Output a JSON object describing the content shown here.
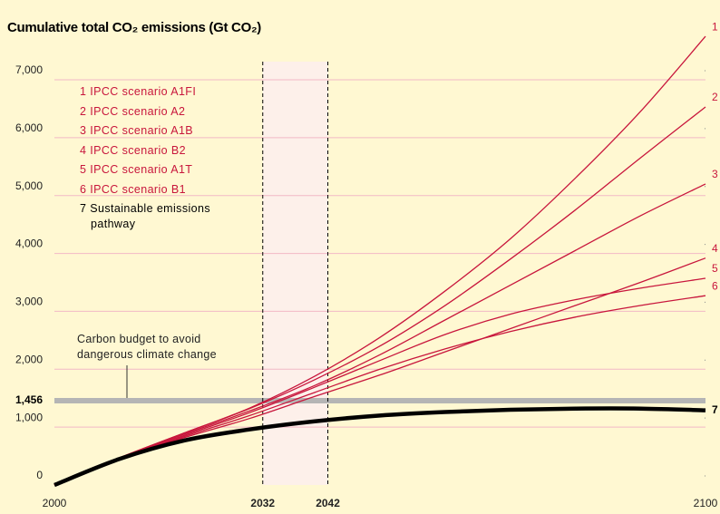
{
  "chart_data": {
    "type": "line",
    "title": "Cumulative total CO₂ emissions (Gt CO₂)",
    "x": [
      2000,
      2010,
      2020,
      2030,
      2040,
      2050,
      2060,
      2070,
      2080,
      2090,
      2100
    ],
    "xlim": [
      2000,
      2100
    ],
    "xticks": [
      2000,
      2032,
      2042,
      2100
    ],
    "highlight": [
      2032,
      2042
    ],
    "ylim": [
      0,
      7000
    ],
    "yticks": [
      0,
      {
        "value": 1000,
        "label": "1,000"
      },
      {
        "value": 2000,
        "label": "2,000"
      },
      {
        "value": 3000,
        "label": "3,000"
      },
      {
        "value": 4000,
        "label": "4,000"
      },
      {
        "value": 5000,
        "label": "5,000"
      },
      {
        "value": 6000,
        "label": "6,000"
      },
      {
        "value": 7000,
        "label": "7,000"
      }
    ],
    "grid": true,
    "budget": {
      "value": 1456,
      "label": "1,456",
      "annotation": "Carbon budget to avoid dangerous climate change",
      "color": "#b5b5b5"
    },
    "series": [
      {
        "label": "1",
        "name": "IPCC scenario A1FI",
        "color": "#c8163c",
        "values": [
          0,
          470,
          900,
          1330,
          1880,
          2550,
          3350,
          4250,
          5300,
          6450,
          7750
        ]
      },
      {
        "label": "2",
        "name": "IPCC scenario A2",
        "color": "#c8163c",
        "values": [
          0,
          470,
          900,
          1320,
          1820,
          2400,
          3100,
          3900,
          4750,
          5650,
          6530
        ]
      },
      {
        "label": "3",
        "name": "IPCC scenario A1B",
        "color": "#c8163c",
        "values": [
          0,
          460,
          880,
          1280,
          1720,
          2250,
          2850,
          3450,
          4050,
          4650,
          5200
        ]
      },
      {
        "label": "4",
        "name": "IPCC scenario B2",
        "color": "#c8163c",
        "values": [
          0,
          440,
          820,
          1150,
          1530,
          1900,
          2300,
          2700,
          3100,
          3500,
          3920
        ]
      },
      {
        "label": "5",
        "name": "IPCC scenario A1T",
        "color": "#c8163c",
        "values": [
          0,
          450,
          860,
          1250,
          1690,
          2150,
          2600,
          2950,
          3200,
          3400,
          3570
        ]
      },
      {
        "label": "6",
        "name": "IPCC scenario B1",
        "color": "#c8163c",
        "values": [
          0,
          445,
          840,
          1200,
          1600,
          2000,
          2350,
          2650,
          2900,
          3100,
          3270
        ]
      },
      {
        "label": "7",
        "name": "Sustainable emissions pathway",
        "color": "#000000",
        "values": [
          0,
          450,
          770,
          960,
          1100,
          1200,
          1260,
          1300,
          1320,
          1320,
          1290
        ]
      }
    ]
  }
}
